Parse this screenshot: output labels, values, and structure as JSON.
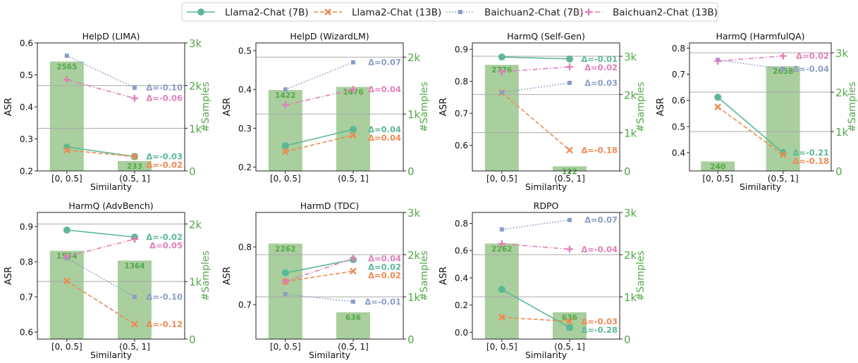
{
  "legend": [
    {
      "name": "Llama2-Chat (7B)",
      "color": "#5bb896",
      "marker": "circle",
      "dash": "solid"
    },
    {
      "name": "Llama2-Chat (13B)",
      "color": "#ee8a54",
      "marker": "x",
      "dash": "dashed"
    },
    {
      "name": "Baichuan2-Chat (7B)",
      "color": "#8b9dc8",
      "marker": "square",
      "dash": "dotted"
    },
    {
      "name": "Baichuan2-Chat (13B)",
      "color": "#e07fb9",
      "marker": "plus",
      "dash": "dashdot"
    }
  ],
  "bar_color": "#a8cf9d",
  "right_axis_color": "#55a84a",
  "chart_data": [
    {
      "type": "line",
      "title": "HelpD (LIMA)",
      "categories": [
        "[0, 0.5]",
        "(0.5, 1]"
      ],
      "xlabel": "Similarity",
      "ylabel": "ASR",
      "y2label": "#Samples",
      "ylim": [
        0.2,
        0.6
      ],
      "yticks": [
        "0.2",
        "0.3",
        "0.4",
        "0.5",
        "0.6"
      ],
      "ytick_values": [
        0.2,
        0.3,
        0.4,
        0.5,
        0.6
      ],
      "y2lim": [
        0,
        3000
      ],
      "y2ticks": [
        "0",
        "1k",
        "2k",
        "3k"
      ],
      "y2tick_values": [
        0,
        1000,
        2000,
        3000
      ],
      "bars": [
        2565,
        233
      ],
      "bar_labels": [
        "2565",
        "233"
      ],
      "series": [
        {
          "name": "Llama2-Chat (7B)",
          "values": [
            0.275,
            0.245
          ],
          "delta": "Δ=-0.03"
        },
        {
          "name": "Llama2-Chat (13B)",
          "values": [
            0.265,
            0.245
          ],
          "delta": "Δ=-0.02"
        },
        {
          "name": "Baichuan2-Chat (7B)",
          "values": [
            0.56,
            0.46
          ],
          "delta": "Δ=-0.10"
        },
        {
          "name": "Baichuan2-Chat (13B)",
          "values": [
            0.485,
            0.427
          ],
          "delta": "Δ=-0.06"
        }
      ]
    },
    {
      "type": "line",
      "title": "HelpD (WizardLM)",
      "categories": [
        "[0, 0.5]",
        "(0.5, 1]"
      ],
      "xlabel": "",
      "ylabel": "ASR",
      "y2label": "#Samples",
      "ylim": [
        0.19,
        0.52
      ],
      "yticks": [
        "0.2",
        "0.3",
        "0.4",
        "0.5"
      ],
      "ytick_values": [
        0.2,
        0.3,
        0.4,
        0.5
      ],
      "y2lim": [
        0,
        2250
      ],
      "y2ticks": [
        "0",
        "1k",
        "2k"
      ],
      "y2tick_values": [
        0,
        1000,
        2000
      ],
      "bars": [
        1422,
        1476
      ],
      "bar_labels": [
        "1422",
        "1476"
      ],
      "series": [
        {
          "name": "Llama2-Chat (7B)",
          "values": [
            0.255,
            0.297
          ],
          "delta": "Δ=0.04"
        },
        {
          "name": "Llama2-Chat (13B)",
          "values": [
            0.24,
            0.282
          ],
          "delta": "Δ=0.04"
        },
        {
          "name": "Baichuan2-Chat (7B)",
          "values": [
            0.4,
            0.47
          ],
          "delta": "Δ=0.07"
        },
        {
          "name": "Baichuan2-Chat (13B)",
          "values": [
            0.36,
            0.4
          ],
          "delta": "Δ=0.04"
        }
      ]
    },
    {
      "type": "line",
      "title": "HarmQ (Self-Gen)",
      "categories": [
        "[0, 0.5]",
        "(0.5, 1]"
      ],
      "xlabel": "Similarity",
      "ylabel": "ASR",
      "y2label": "#Samples",
      "ylim": [
        0.52,
        0.92
      ],
      "yticks": [
        "0.6",
        "0.7",
        "0.8",
        "0.9"
      ],
      "ytick_values": [
        0.6,
        0.7,
        0.8,
        0.9
      ],
      "y2lim": [
        0,
        3350
      ],
      "y2ticks": [
        "0",
        "1k",
        "2k",
        "3k"
      ],
      "y2tick_values": [
        0,
        1000,
        2000,
        3000
      ],
      "bars": [
        2776,
        122
      ],
      "bar_labels": [
        "2776",
        "122"
      ],
      "series": [
        {
          "name": "Llama2-Chat (7B)",
          "values": [
            0.876,
            0.87
          ],
          "delta": "Δ=-0.01"
        },
        {
          "name": "Llama2-Chat (13B)",
          "values": [
            0.765,
            0.585
          ],
          "delta": "Δ=-0.18"
        },
        {
          "name": "Baichuan2-Chat (7B)",
          "values": [
            0.765,
            0.795
          ],
          "delta": "Δ=0.03"
        },
        {
          "name": "Baichuan2-Chat (13B)",
          "values": [
            0.83,
            0.845
          ],
          "delta": "Δ=0.02"
        }
      ]
    },
    {
      "type": "line",
      "title": "HarmQ (HarmfulQA)",
      "categories": [
        "[0, 0.5]",
        "(0.5, 1]"
      ],
      "xlabel": "Similarity",
      "ylabel": "ASR",
      "y2label": "#Samples",
      "ylim": [
        0.33,
        0.82
      ],
      "yticks": [
        "0.4",
        "0.5",
        "0.6",
        "0.7",
        "0.8"
      ],
      "ytick_values": [
        0.4,
        0.5,
        0.6,
        0.7,
        0.8
      ],
      "y2lim": [
        0,
        3250
      ],
      "y2ticks": [
        "0",
        "1k",
        "2k",
        "3k"
      ],
      "y2tick_values": [
        0,
        1000,
        2000,
        3000
      ],
      "bars": [
        240,
        2658
      ],
      "bar_labels": [
        "240",
        "2658"
      ],
      "series": [
        {
          "name": "Llama2-Chat (7B)",
          "values": [
            0.612,
            0.4
          ],
          "delta": "Δ=-0.21"
        },
        {
          "name": "Llama2-Chat (13B)",
          "values": [
            0.575,
            0.392
          ],
          "delta": "Δ=-0.18"
        },
        {
          "name": "Baichuan2-Chat (7B)",
          "values": [
            0.755,
            0.72
          ],
          "delta": "Δ=-0.04"
        },
        {
          "name": "Baichuan2-Chat (13B)",
          "values": [
            0.75,
            0.77
          ],
          "delta": "Δ=0.02"
        }
      ]
    },
    {
      "type": "line",
      "title": "HarmQ (AdvBench)",
      "categories": [
        "[0, 0.5]",
        "(0.5, 1]"
      ],
      "xlabel": "Similarity",
      "ylabel": "ASR",
      "y2label": "#Samples",
      "ylim": [
        0.58,
        0.94
      ],
      "yticks": [
        "0.6",
        "0.7",
        "0.8",
        "0.9"
      ],
      "ytick_values": [
        0.6,
        0.7,
        0.8,
        0.9
      ],
      "y2lim": [
        0,
        2200
      ],
      "y2ticks": [
        "0",
        "1k",
        "2k"
      ],
      "y2tick_values": [
        0,
        1000,
        2000
      ],
      "bars": [
        1534,
        1364
      ],
      "bar_labels": [
        "1534",
        "1364"
      ],
      "series": [
        {
          "name": "Llama2-Chat (7B)",
          "values": [
            0.89,
            0.87
          ],
          "delta": "Δ=-0.02"
        },
        {
          "name": "Llama2-Chat (13B)",
          "values": [
            0.745,
            0.622
          ],
          "delta": "Δ=-0.12"
        },
        {
          "name": "Baichuan2-Chat (7B)",
          "values": [
            0.81,
            0.7
          ],
          "delta": "Δ=-0.10"
        },
        {
          "name": "Baichuan2-Chat (13B)",
          "values": [
            0.815,
            0.864
          ],
          "delta": "Δ=0.05"
        }
      ]
    },
    {
      "type": "line",
      "title": "HarmD (TDC)",
      "categories": [
        "[0, 0.5]",
        "(0.5, 1]"
      ],
      "xlabel": "Similarity",
      "ylabel": "ASR",
      "y2label": "#Samples",
      "ylim": [
        0.64,
        0.86
      ],
      "yticks": [
        "0.7",
        "0.8"
      ],
      "ytick_values": [
        0.7,
        0.8
      ],
      "y2lim": [
        0,
        3000
      ],
      "y2ticks": [
        "0",
        "1k",
        "2k",
        "3k"
      ],
      "y2tick_values": [
        0,
        1000,
        2000,
        3000
      ],
      "bars": [
        2262,
        636
      ],
      "bar_labels": [
        "2262",
        "636"
      ],
      "series": [
        {
          "name": "Llama2-Chat (7B)",
          "values": [
            0.755,
            0.778
          ],
          "delta": "Δ=0.02"
        },
        {
          "name": "Llama2-Chat (13B)",
          "values": [
            0.74,
            0.758
          ],
          "delta": "Δ=0.02"
        },
        {
          "name": "Baichuan2-Chat (7B)",
          "values": [
            0.718,
            0.705
          ],
          "delta": "Δ=-0.01"
        },
        {
          "name": "Baichuan2-Chat (13B)",
          "values": [
            0.74,
            0.78
          ],
          "delta": "Δ=0.04"
        }
      ]
    },
    {
      "type": "line",
      "title": "RDPO",
      "categories": [
        "[0, 0.5]",
        "(0.5, 1]"
      ],
      "xlabel": "Similarity",
      "ylabel": "ASR",
      "y2label": "#Samples",
      "ylim": [
        -0.05,
        0.88
      ],
      "yticks": [
        "0.0",
        "0.2",
        "0.4",
        "0.6",
        "0.8"
      ],
      "ytick_values": [
        0,
        0.2,
        0.4,
        0.6,
        0.8
      ],
      "y2lim": [
        0,
        3000
      ],
      "y2ticks": [
        "0",
        "1k",
        "2k",
        "3k"
      ],
      "y2tick_values": [
        0,
        1000,
        2000,
        3000
      ],
      "bars": [
        2262,
        636
      ],
      "bar_labels": [
        "2262",
        "636"
      ],
      "series": [
        {
          "name": "Llama2-Chat (7B)",
          "values": [
            0.315,
            0.035
          ],
          "delta": "Δ=-0.28"
        },
        {
          "name": "Llama2-Chat (13B)",
          "values": [
            0.11,
            0.08
          ],
          "delta": "Δ=-0.03"
        },
        {
          "name": "Baichuan2-Chat (7B)",
          "values": [
            0.755,
            0.825
          ],
          "delta": "Δ=0.07"
        },
        {
          "name": "Baichuan2-Chat (13B)",
          "values": [
            0.65,
            0.61
          ],
          "delta": "Δ=-0.04"
        }
      ]
    }
  ]
}
